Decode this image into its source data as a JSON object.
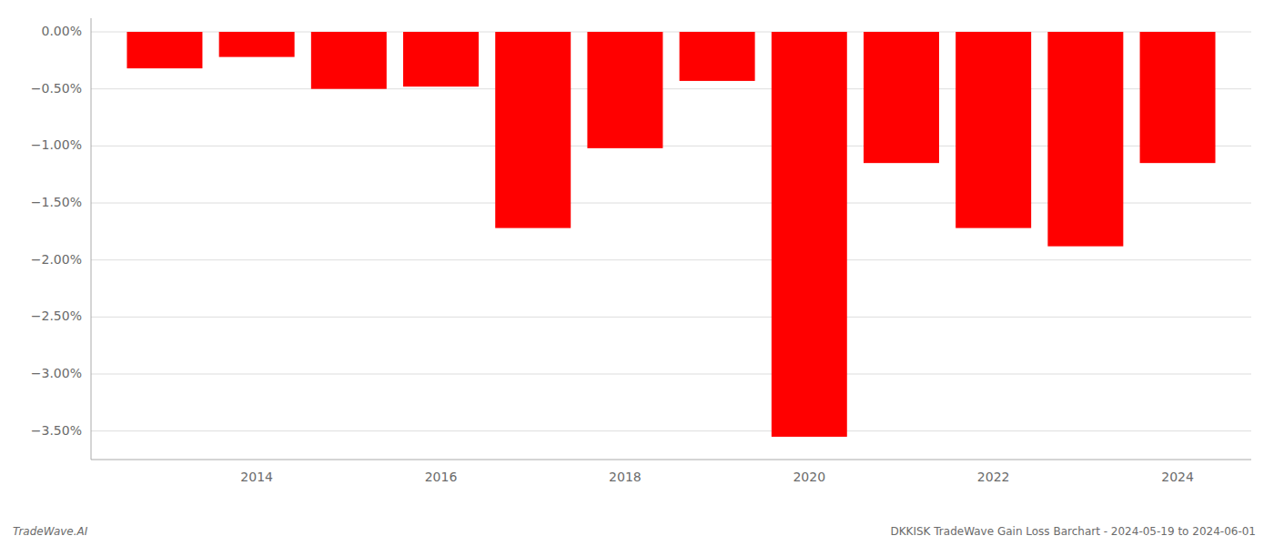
{
  "chart_data": {
    "type": "bar",
    "title": "DKKISK TradeWave Gain Loss Barchart - 2024-05-19 to 2024-06-01",
    "annotations": [
      "TradeWave.AI"
    ],
    "x": [
      2013,
      2014,
      2015,
      2016,
      2017,
      2018,
      2019,
      2020,
      2021,
      2022,
      2023,
      2024
    ],
    "values": [
      -0.32,
      -0.22,
      -0.5,
      -0.48,
      -1.72,
      -1.02,
      -0.43,
      -3.55,
      -1.15,
      -1.72,
      -1.88,
      -1.15
    ],
    "color": "#ff0000",
    "xlim": [
      2012.2,
      2024.8
    ],
    "xticks": [
      2014,
      2016,
      2018,
      2020,
      2022,
      2024
    ],
    "ylim": [
      -3.75,
      0.12
    ],
    "yticks": [
      {
        "value": 0.0,
        "label": "0.00%"
      },
      {
        "value": -0.5,
        "label": "−0.50%"
      },
      {
        "value": -1.0,
        "label": "−1.00%"
      },
      {
        "value": -1.5,
        "label": "−1.50%"
      },
      {
        "value": -2.0,
        "label": "−2.00%"
      },
      {
        "value": -2.5,
        "label": "−2.50%"
      },
      {
        "value": -3.0,
        "label": "−3.00%"
      },
      {
        "value": -3.5,
        "label": "−3.50%"
      }
    ],
    "grid": true
  }
}
